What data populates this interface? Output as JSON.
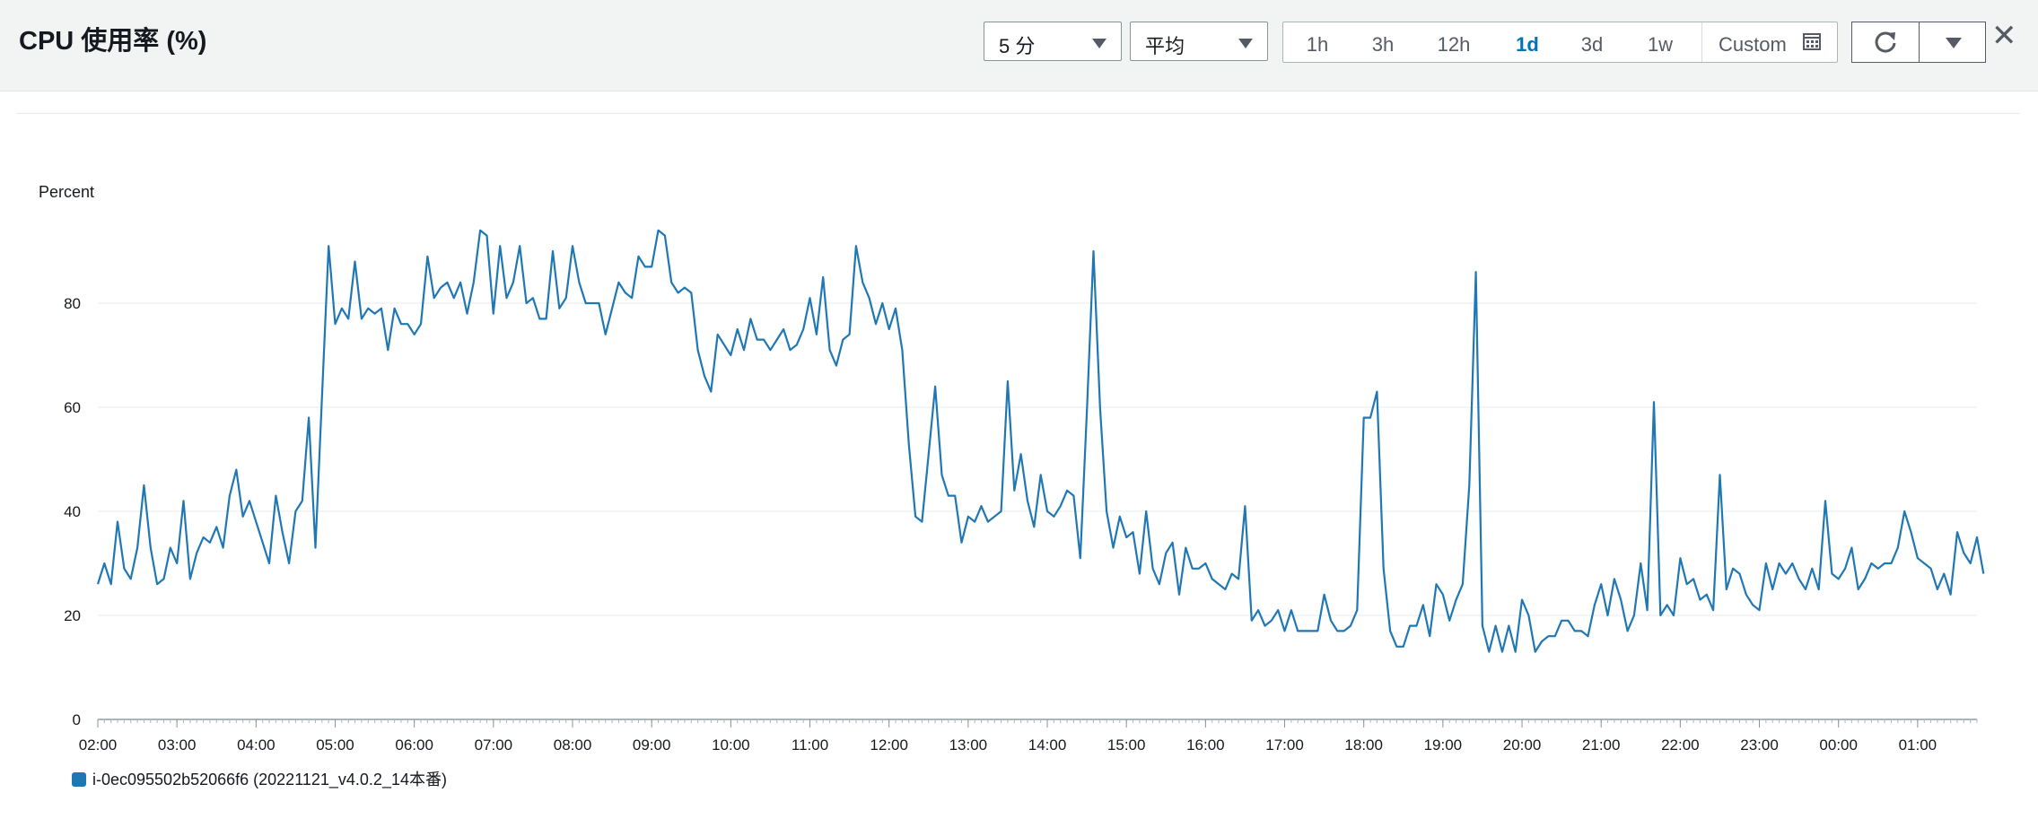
{
  "header": {
    "title": "CPU 使用率 (%)",
    "period_select": "5 分",
    "stat_select": "平均",
    "time_ranges": [
      "1h",
      "3h",
      "12h",
      "1d",
      "3d",
      "1w"
    ],
    "active_range": "1d",
    "custom_label": "Custom"
  },
  "colors": {
    "series": "#1f77b4",
    "active": "#0073bb"
  },
  "chart_data": {
    "type": "line",
    "ylabel": "Percent",
    "ylim": [
      0,
      100
    ],
    "yticks": [
      0,
      20,
      40,
      60,
      80
    ],
    "xlim": [
      "02:00",
      "01:45"
    ],
    "xticks": [
      "02:00",
      "03:00",
      "04:00",
      "05:00",
      "06:00",
      "07:00",
      "08:00",
      "09:00",
      "10:00",
      "11:00",
      "12:00",
      "13:00",
      "14:00",
      "15:00",
      "16:00",
      "17:00",
      "18:00",
      "19:00",
      "20:00",
      "21:00",
      "22:00",
      "23:00",
      "00:00",
      "01:00"
    ],
    "grid": true,
    "legend_position": "bottom-left",
    "series": [
      {
        "name": "i-0ec095502b52066f6 (20221121_v4.0.2_14本番)",
        "start": "02:00",
        "interval_minutes": 5,
        "values": [
          26,
          30,
          26,
          38,
          29,
          27,
          33,
          45,
          33,
          26,
          27,
          33,
          30,
          42,
          27,
          32,
          35,
          34,
          37,
          33,
          43,
          48,
          39,
          42,
          38,
          34,
          30,
          43,
          36,
          30,
          40,
          42,
          58,
          33,
          62,
          91,
          76,
          79,
          77,
          88,
          77,
          79,
          78,
          79,
          71,
          79,
          76,
          76,
          74,
          76,
          89,
          81,
          83,
          84,
          81,
          84,
          78,
          84,
          94,
          93,
          78,
          91,
          81,
          84,
          91,
          80,
          81,
          77,
          77,
          90,
          79,
          81,
          91,
          84,
          80,
          80,
          80,
          74,
          79,
          84,
          82,
          81,
          89,
          87,
          87,
          94,
          93,
          84,
          82,
          83,
          82,
          71,
          66,
          63,
          74,
          72,
          70,
          75,
          71,
          77,
          73,
          73,
          71,
          73,
          75,
          71,
          72,
          75,
          81,
          74,
          85,
          71,
          68,
          73,
          74,
          91,
          84,
          81,
          76,
          80,
          75,
          79,
          71,
          53,
          39,
          38,
          51,
          64,
          47,
          43,
          43,
          34,
          39,
          38,
          41,
          38,
          39,
          40,
          65,
          44,
          51,
          42,
          37,
          47,
          40,
          39,
          41,
          44,
          43,
          31,
          59,
          90,
          60,
          40,
          33,
          39,
          35,
          36,
          28,
          40,
          29,
          26,
          32,
          34,
          24,
          33,
          29,
          29,
          30,
          27,
          26,
          25,
          28,
          27,
          41,
          19,
          21,
          18,
          19,
          21,
          17,
          21,
          17,
          17,
          17,
          17,
          24,
          19,
          17,
          17,
          18,
          21,
          58,
          58,
          63,
          29,
          17,
          14,
          14,
          18,
          18,
          22,
          16,
          26,
          24,
          19,
          23,
          26,
          45,
          86,
          18,
          13,
          18,
          13,
          18,
          13,
          23,
          20,
          13,
          15,
          16,
          16,
          19,
          19,
          17,
          17,
          16,
          22,
          26,
          20,
          27,
          23,
          17,
          20,
          30,
          21,
          61,
          20,
          22,
          20,
          31,
          26,
          27,
          23,
          24,
          21,
          47,
          25,
          29,
          28,
          24,
          22,
          21,
          30,
          25,
          30,
          28,
          30,
          27,
          25,
          29,
          25,
          42,
          28,
          27,
          29,
          33,
          25,
          27,
          30,
          29,
          30,
          30,
          33,
          40,
          36,
          31,
          30,
          29,
          25,
          28,
          24,
          36,
          32,
          30,
          35,
          28
        ]
      }
    ]
  }
}
